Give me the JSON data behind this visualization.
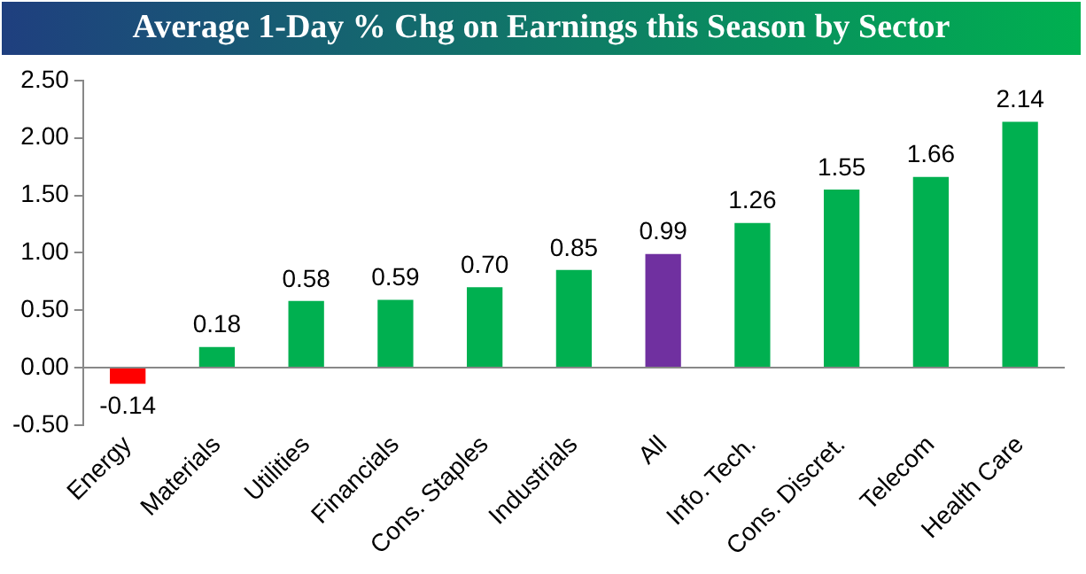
{
  "chart_data": {
    "type": "bar",
    "title": "Average 1-Day % Chg on Earnings this Season by Sector",
    "categories": [
      "Energy",
      "Materials",
      "Utilities",
      "Financials",
      "Cons. Staples",
      "Industrials",
      "All",
      "Info. Tech.",
      "Cons. Discret.",
      "Telecom",
      "Health Care"
    ],
    "values": [
      -0.14,
      0.18,
      0.58,
      0.59,
      0.7,
      0.85,
      0.99,
      1.26,
      1.55,
      1.66,
      2.14
    ],
    "colors": [
      "#ff0000",
      "#00b050",
      "#00b050",
      "#00b050",
      "#00b050",
      "#00b050",
      "#7030a0",
      "#00b050",
      "#00b050",
      "#00b050",
      "#00b050"
    ],
    "value_labels": [
      "-0.14",
      "0.18",
      "0.58",
      "0.59",
      "0.70",
      "0.85",
      "0.99",
      "1.26",
      "1.55",
      "1.66",
      "2.14"
    ],
    "ylim": [
      -0.5,
      2.5
    ],
    "yticks": [
      {
        "value": -0.5,
        "label": "-0.50"
      },
      {
        "value": 0,
        "label": "0.00"
      },
      {
        "value": 0.5,
        "label": "0.50"
      },
      {
        "value": 1,
        "label": "1.00"
      },
      {
        "value": 1.5,
        "label": "1.50"
      },
      {
        "value": 2,
        "label": "2.00"
      },
      {
        "value": 2.5,
        "label": "2.50"
      }
    ],
    "grid": false,
    "legend": false
  }
}
